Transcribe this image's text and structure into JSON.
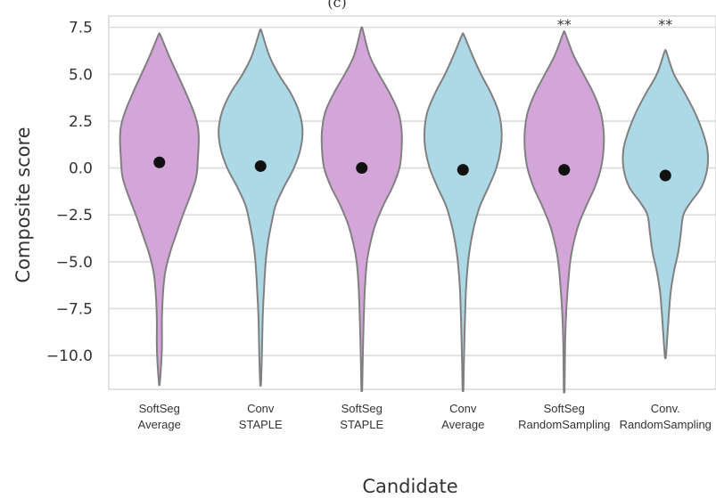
{
  "figure_label": "(c)",
  "chart_data": {
    "type": "violin",
    "xlabel": "Candidate",
    "ylabel": "Composite score",
    "ylim": [
      -11.8,
      8.1
    ],
    "yticks": [
      7.5,
      5.0,
      2.5,
      0.0,
      -2.5,
      -5.0,
      -7.5,
      -10.0
    ],
    "ytick_labels": [
      "7.5",
      "5.0",
      "2.5",
      "0.0",
      "−2.5",
      "−5.0",
      "−7.5",
      "−10.0"
    ],
    "grid": true,
    "colors": {
      "softseg": "#d4a5d8",
      "conv": "#add8e6",
      "outline": "#808080",
      "marker": "#111111"
    },
    "categories": [
      {
        "lines": [
          "SoftSeg",
          "Average"
        ],
        "group": "softseg",
        "mean": 0.3,
        "min": -11.5,
        "max": 7.1,
        "significance": "",
        "profile": [
          [
            7.1,
            0.02
          ],
          [
            6,
            0.22
          ],
          [
            5,
            0.42
          ],
          [
            4,
            0.62
          ],
          [
            3,
            0.8
          ],
          [
            2.2,
            0.9
          ],
          [
            1.5,
            0.92
          ],
          [
            0.5,
            0.9
          ],
          [
            -0.5,
            0.86
          ],
          [
            -1.5,
            0.72
          ],
          [
            -2.5,
            0.55
          ],
          [
            -3.5,
            0.4
          ],
          [
            -4.5,
            0.25
          ],
          [
            -5.5,
            0.14
          ],
          [
            -6.5,
            0.09
          ],
          [
            -8,
            0.06
          ],
          [
            -9.5,
            0.06
          ],
          [
            -10.5,
            0.04
          ],
          [
            -11.5,
            0.01
          ]
        ]
      },
      {
        "lines": [
          "Conv",
          "STAPLE"
        ],
        "group": "conv",
        "mean": 0.1,
        "min": -11.5,
        "max": 7.3,
        "significance": "",
        "profile": [
          [
            7.3,
            0.02
          ],
          [
            6,
            0.2
          ],
          [
            5,
            0.42
          ],
          [
            4,
            0.7
          ],
          [
            3,
            0.9
          ],
          [
            2,
            0.98
          ],
          [
            1,
            0.93
          ],
          [
            0,
            0.78
          ],
          [
            -1,
            0.55
          ],
          [
            -2,
            0.35
          ],
          [
            -3,
            0.25
          ],
          [
            -4,
            0.17
          ],
          [
            -5,
            0.12
          ],
          [
            -6.5,
            0.08
          ],
          [
            -8,
            0.05
          ],
          [
            -10,
            0.03
          ],
          [
            -11.5,
            0.01
          ]
        ]
      },
      {
        "lines": [
          "SoftSeg",
          "STAPLE"
        ],
        "group": "softseg",
        "mean": 0.0,
        "min": -11.8,
        "max": 7.4,
        "significance": "",
        "profile": [
          [
            7.4,
            0.02
          ],
          [
            6,
            0.18
          ],
          [
            5,
            0.4
          ],
          [
            4,
            0.65
          ],
          [
            3,
            0.85
          ],
          [
            2,
            0.93
          ],
          [
            1,
            0.93
          ],
          [
            0,
            0.88
          ],
          [
            -1,
            0.72
          ],
          [
            -2,
            0.5
          ],
          [
            -3,
            0.32
          ],
          [
            -4,
            0.2
          ],
          [
            -5,
            0.12
          ],
          [
            -6.5,
            0.07
          ],
          [
            -8.5,
            0.04
          ],
          [
            -10.5,
            0.02
          ],
          [
            -11.8,
            0.01
          ]
        ]
      },
      {
        "lines": [
          "Conv",
          "Average"
        ],
        "group": "conv",
        "mean": -0.1,
        "min": -11.8,
        "max": 7.1,
        "significance": "",
        "profile": [
          [
            7.1,
            0.02
          ],
          [
            6,
            0.22
          ],
          [
            5,
            0.42
          ],
          [
            4,
            0.65
          ],
          [
            3,
            0.83
          ],
          [
            2,
            0.9
          ],
          [
            1,
            0.88
          ],
          [
            0,
            0.78
          ],
          [
            -1,
            0.6
          ],
          [
            -2,
            0.4
          ],
          [
            -3,
            0.27
          ],
          [
            -4,
            0.18
          ],
          [
            -5,
            0.12
          ],
          [
            -6.5,
            0.07
          ],
          [
            -8.5,
            0.04
          ],
          [
            -10.5,
            0.02
          ],
          [
            -11.8,
            0.01
          ]
        ]
      },
      {
        "lines": [
          "SoftSeg",
          "RandomSampling"
        ],
        "group": "softseg",
        "mean": -0.1,
        "min": -11.8,
        "max": 7.2,
        "significance": "**",
        "profile": [
          [
            7.2,
            0.02
          ],
          [
            6,
            0.22
          ],
          [
            5,
            0.45
          ],
          [
            4,
            0.68
          ],
          [
            3,
            0.85
          ],
          [
            2,
            0.92
          ],
          [
            1,
            0.92
          ],
          [
            0,
            0.86
          ],
          [
            -1,
            0.72
          ],
          [
            -2,
            0.52
          ],
          [
            -3,
            0.34
          ],
          [
            -4,
            0.22
          ],
          [
            -5,
            0.14
          ],
          [
            -6.5,
            0.08
          ],
          [
            -8,
            0.04
          ],
          [
            -9.5,
            0.02
          ],
          [
            -11.8,
            0.01
          ]
        ]
      },
      {
        "lines": [
          "Conv.",
          "RandomSampling"
        ],
        "group": "conv",
        "mean": -0.4,
        "min": -10.1,
        "max": 6.2,
        "significance": "**",
        "profile": [
          [
            6.2,
            0.02
          ],
          [
            5,
            0.2
          ],
          [
            4,
            0.45
          ],
          [
            3,
            0.68
          ],
          [
            2,
            0.86
          ],
          [
            1,
            0.98
          ],
          [
            0,
            0.98
          ],
          [
            -1,
            0.85
          ],
          [
            -1.8,
            0.6
          ],
          [
            -2.5,
            0.42
          ],
          [
            -3.5,
            0.36
          ],
          [
            -4.5,
            0.3
          ],
          [
            -5.5,
            0.2
          ],
          [
            -6.5,
            0.13
          ],
          [
            -7.5,
            0.09
          ],
          [
            -8.5,
            0.06
          ],
          [
            -9.5,
            0.03
          ],
          [
            -10.1,
            0.01
          ]
        ]
      }
    ]
  }
}
